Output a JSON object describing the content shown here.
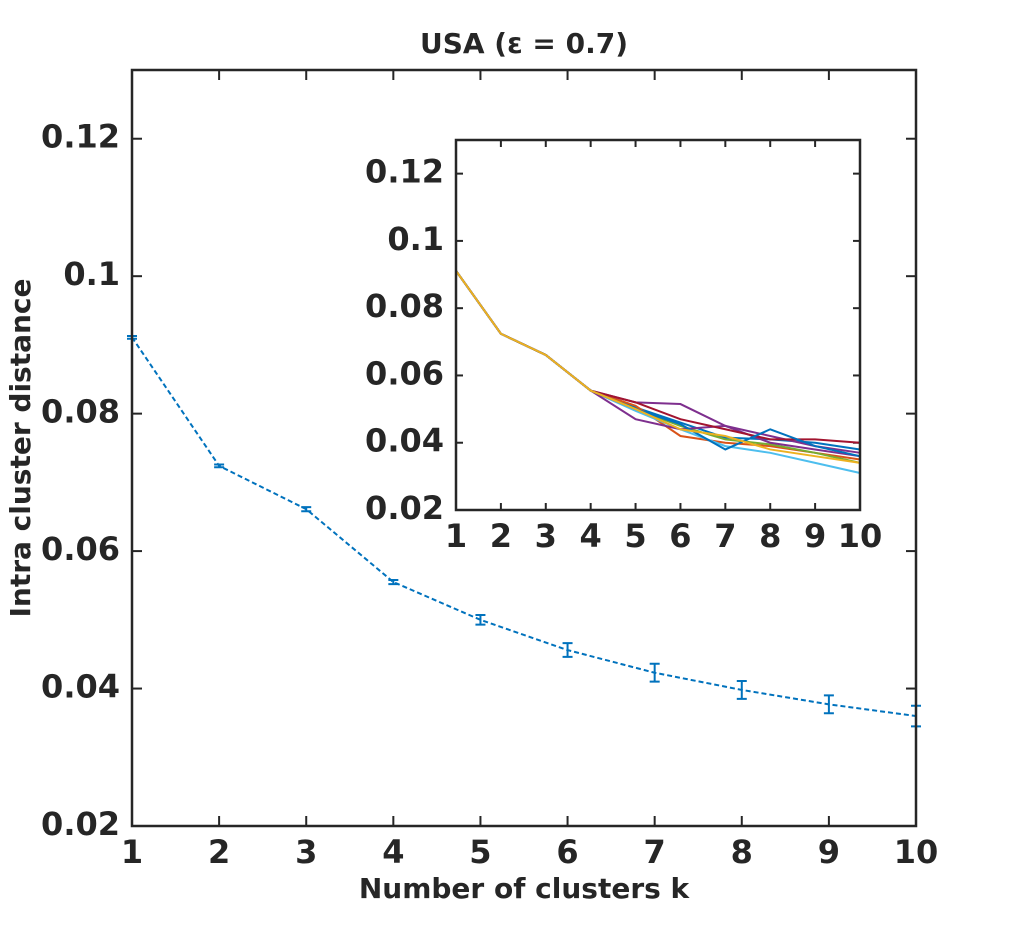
{
  "chart_data": [
    {
      "type": "errorbar",
      "title": "USA (ε = 0.7)",
      "xlabel": "Number of clusters k",
      "ylabel": "Intra cluster distance",
      "x": [
        1,
        2,
        3,
        4,
        5,
        6,
        7,
        8,
        9,
        10
      ],
      "series": [
        {
          "color": "#0072BD",
          "values": [
            0.0911,
            0.0724,
            0.0661,
            0.0555,
            0.05,
            0.0456,
            0.0423,
            0.0398,
            0.0377,
            0.036
          ],
          "errors": [
            0.0002,
            0.0002,
            0.0003,
            0.0003,
            0.0007,
            0.001,
            0.0013,
            0.0013,
            0.0013,
            0.0015
          ]
        }
      ],
      "xlim": [
        1,
        10
      ],
      "xticks": [
        1,
        2,
        3,
        4,
        5,
        6,
        7,
        8,
        9,
        10
      ],
      "ylim": [
        0.02,
        0.13
      ],
      "yticks": [
        0.02,
        0.04,
        0.06,
        0.08,
        0.1,
        0.12
      ]
    },
    {
      "type": "line",
      "x": [
        1,
        2,
        3,
        4,
        5,
        6,
        7,
        8,
        9,
        10
      ],
      "series": [
        {
          "color": "#0072BD",
          "values": [
            0.0911,
            0.0724,
            0.0661,
            0.0555,
            0.0505,
            0.046,
            0.0415,
            0.041,
            0.04,
            0.038
          ]
        },
        {
          "color": "#D95319",
          "values": [
            0.0911,
            0.0724,
            0.0661,
            0.0555,
            0.051,
            0.042,
            0.04,
            0.039,
            0.037,
            0.035
          ]
        },
        {
          "color": "#77AC30",
          "values": [
            0.0911,
            0.0724,
            0.0661,
            0.0555,
            0.05,
            0.045,
            0.041,
            0.0395,
            0.037,
            0.034
          ]
        },
        {
          "color": "#4DBEEE",
          "values": [
            0.0911,
            0.0724,
            0.0661,
            0.0555,
            0.0495,
            0.044,
            0.039,
            0.037,
            0.034,
            0.031
          ]
        },
        {
          "color": "#7E2F8E",
          "values": [
            0.0911,
            0.0724,
            0.0661,
            0.0555,
            0.047,
            0.044,
            0.045,
            0.04,
            0.038,
            0.036
          ]
        },
        {
          "color": "#7E2F8E",
          "values": [
            0.0911,
            0.0724,
            0.0661,
            0.0555,
            0.052,
            0.0515,
            0.045,
            0.042,
            0.039,
            0.037
          ]
        },
        {
          "color": "#A2142F",
          "values": [
            0.0911,
            0.0724,
            0.0661,
            0.0555,
            0.052,
            0.047,
            0.044,
            0.041,
            0.041,
            0.04
          ]
        },
        {
          "color": "#0072BD",
          "values": [
            0.0911,
            0.0724,
            0.0661,
            0.0555,
            0.05,
            0.0455,
            0.038,
            0.044,
            0.039,
            0.036
          ]
        },
        {
          "color": "#EDB120",
          "values": [
            0.0911,
            0.0724,
            0.0661,
            0.0555,
            0.05,
            0.044,
            0.042,
            0.038,
            0.036,
            0.034
          ]
        }
      ],
      "xlim": [
        1,
        10
      ],
      "xticks": [
        1,
        2,
        3,
        4,
        5,
        6,
        7,
        8,
        9,
        10
      ],
      "ylim": [
        0.02,
        0.13
      ],
      "yticks": [
        0.02,
        0.04,
        0.06,
        0.08,
        0.1,
        0.12
      ]
    }
  ]
}
